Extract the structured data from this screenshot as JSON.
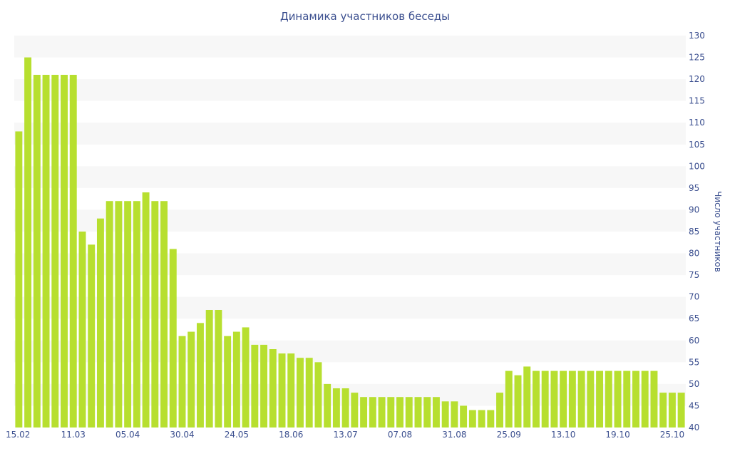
{
  "chart_data": {
    "type": "bar",
    "title": "Динамика участников беседы",
    "ylabel": "Число участников",
    "xlabel": "",
    "ylim": [
      40,
      130
    ],
    "y_ticks": [
      40,
      45,
      50,
      55,
      60,
      65,
      70,
      75,
      80,
      85,
      90,
      95,
      100,
      105,
      110,
      115,
      120,
      125,
      130
    ],
    "y_axis_side": "right",
    "grid": "alternating horizontal bands",
    "x_tick_labels": [
      {
        "label": "15.02",
        "index": 0
      },
      {
        "label": "11.03",
        "index": 6
      },
      {
        "label": "05.04",
        "index": 12
      },
      {
        "label": "30.04",
        "index": 18
      },
      {
        "label": "24.05",
        "index": 24
      },
      {
        "label": "18.06",
        "index": 30
      },
      {
        "label": "13.07",
        "index": 36
      },
      {
        "label": "07.08",
        "index": 42
      },
      {
        "label": "31.08",
        "index": 48
      },
      {
        "label": "25.09",
        "index": 54
      },
      {
        "label": "13.10",
        "index": 60
      },
      {
        "label": "19.10",
        "index": 66
      },
      {
        "label": "25.10",
        "index": 72
      }
    ],
    "values": [
      108,
      125,
      121,
      121,
      121,
      121,
      121,
      85,
      82,
      88,
      92,
      92,
      92,
      92,
      94,
      92,
      92,
      81,
      61,
      62,
      64,
      67,
      67,
      61,
      62,
      63,
      59,
      59,
      58,
      57,
      57,
      56,
      56,
      55,
      50,
      49,
      49,
      48,
      47,
      47,
      47,
      47,
      47,
      47,
      47,
      47,
      47,
      46,
      46,
      45,
      44,
      44,
      44,
      48,
      53,
      52,
      54,
      53,
      53,
      53,
      53,
      53,
      53,
      53,
      53,
      53,
      53,
      53,
      53,
      53,
      53,
      48,
      48,
      48
    ],
    "colors": {
      "bar": "#b7df2f",
      "band": "#f7f7f7",
      "text": "#3b4f8f"
    }
  }
}
